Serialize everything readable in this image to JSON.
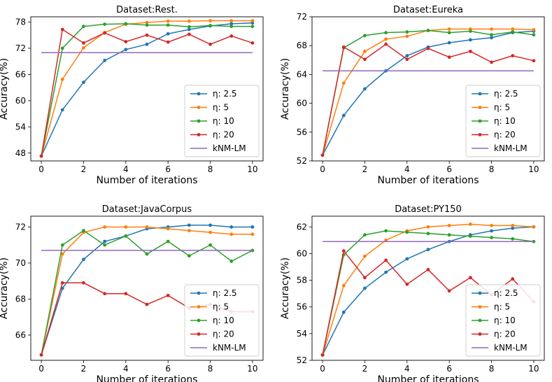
{
  "chart_data": [
    {
      "type": "line",
      "title": "Dataset:Rest.",
      "xlabel": "Number of iterations",
      "ylabel": "Accuracy(%)",
      "xlim": [
        -0.5,
        10.5
      ],
      "ylim": [
        46.2,
        79.2
      ],
      "xticks": [
        0,
        2,
        4,
        6,
        8,
        10
      ],
      "yticks": [
        48,
        54,
        60,
        66,
        72,
        78
      ],
      "legend_position": "lower-right",
      "x": [
        0,
        1,
        2,
        3,
        4,
        5,
        6,
        7,
        8,
        9,
        10
      ],
      "series": [
        {
          "name": "η: 2.5",
          "color": "#1f77b4",
          "values": [
            47.3,
            57.9,
            64.2,
            69.2,
            71.7,
            72.9,
            75.3,
            76.3,
            77.1,
            77.6,
            77.8
          ]
        },
        {
          "name": "η: 5",
          "color": "#ff7f0e",
          "values": [
            47.3,
            64.9,
            72.1,
            75.6,
            77.5,
            77.9,
            78.2,
            78.2,
            78.3,
            78.3,
            78.3
          ]
        },
        {
          "name": "η: 10",
          "color": "#2ca02c",
          "values": [
            47.3,
            72.0,
            77.0,
            77.5,
            77.6,
            77.3,
            77.3,
            76.9,
            77.2,
            77.0,
            77.0
          ]
        },
        {
          "name": "η: 20",
          "color": "#d62728",
          "values": [
            47.3,
            76.3,
            73.2,
            75.5,
            73.5,
            75.0,
            73.4,
            75.2,
            72.9,
            74.8,
            73.2
          ]
        },
        {
          "name": "kNM-LM",
          "color": "#9467bd",
          "values": [
            71.0,
            71.0,
            71.0,
            71.0,
            71.0,
            71.0,
            71.0,
            71.0,
            71.0,
            71.0,
            71.0
          ],
          "markers": false
        }
      ]
    },
    {
      "type": "line",
      "title": "Dataset:Eureka",
      "xlabel": "Number of iterations",
      "ylabel": "Accuracy(%)",
      "xlim": [
        -0.5,
        10.5
      ],
      "ylim": [
        52,
        72
      ],
      "xticks": [
        0,
        2,
        4,
        6,
        8,
        10
      ],
      "yticks": [
        52,
        56,
        60,
        64,
        68,
        72
      ],
      "legend_position": "lower-right",
      "x": [
        0,
        1,
        2,
        3,
        4,
        5,
        6,
        7,
        8,
        9,
        10
      ],
      "series": [
        {
          "name": "η: 2.5",
          "color": "#1f77b4",
          "values": [
            52.8,
            58.3,
            62.0,
            64.5,
            66.6,
            67.8,
            68.4,
            68.8,
            69.1,
            69.8,
            70.0
          ]
        },
        {
          "name": "η: 5",
          "color": "#ff7f0e",
          "values": [
            52.8,
            62.8,
            67.2,
            68.9,
            69.3,
            70.1,
            70.3,
            70.3,
            70.3,
            70.3,
            70.2
          ]
        },
        {
          "name": "η: 10",
          "color": "#2ca02c",
          "values": [
            52.8,
            67.7,
            69.4,
            69.8,
            69.9,
            70.1,
            69.8,
            70.0,
            69.5,
            69.9,
            69.5
          ]
        },
        {
          "name": "η: 20",
          "color": "#d62728",
          "values": [
            52.8,
            67.8,
            66.1,
            68.2,
            66.1,
            67.6,
            66.4,
            67.2,
            65.7,
            66.6,
            65.9
          ]
        },
        {
          "name": "kNM-LM",
          "color": "#9467bd",
          "values": [
            64.5,
            64.5,
            64.5,
            64.5,
            64.5,
            64.5,
            64.5,
            64.5,
            64.5,
            64.5,
            64.5
          ],
          "markers": false
        }
      ]
    },
    {
      "type": "line",
      "title": "Dataset:JavaCorpus",
      "xlabel": "Number of iterations",
      "ylabel": "Accuracy(%)",
      "xlim": [
        -0.5,
        10.5
      ],
      "ylim": [
        64.6,
        72.6
      ],
      "xticks": [
        0,
        2,
        4,
        6,
        8,
        10
      ],
      "yticks": [
        66,
        68,
        70,
        72
      ],
      "legend_position": "lower-right",
      "x": [
        0,
        1,
        2,
        3,
        4,
        5,
        6,
        7,
        8,
        9,
        10
      ],
      "series": [
        {
          "name": "η: 2.5",
          "color": "#1f77b4",
          "values": [
            64.9,
            68.6,
            70.2,
            71.2,
            71.5,
            71.9,
            72.0,
            72.1,
            72.1,
            72.0,
            72.0
          ]
        },
        {
          "name": "η: 5",
          "color": "#ff7f0e",
          "values": [
            64.9,
            70.5,
            71.7,
            72.0,
            72.0,
            72.0,
            71.9,
            71.8,
            71.7,
            71.6,
            71.6
          ]
        },
        {
          "name": "η: 10",
          "color": "#2ca02c",
          "values": [
            64.9,
            71.0,
            71.8,
            71.0,
            71.5,
            70.5,
            71.2,
            70.4,
            71.0,
            70.1,
            70.7
          ]
        },
        {
          "name": "η: 20",
          "color": "#d62728",
          "values": [
            64.9,
            68.9,
            68.9,
            68.3,
            68.3,
            67.7,
            68.2,
            67.5,
            67.7,
            67.3,
            67.3
          ]
        },
        {
          "name": "kNM-LM",
          "color": "#9467bd",
          "values": [
            70.7,
            70.7,
            70.7,
            70.7,
            70.7,
            70.7,
            70.7,
            70.7,
            70.7,
            70.7,
            70.7
          ],
          "markers": false
        }
      ]
    },
    {
      "type": "line",
      "title": "Dataset:PY150",
      "xlabel": "Number of iterations",
      "ylabel": "Accuracy(%)",
      "xlim": [
        -0.5,
        10.5
      ],
      "ylim": [
        52,
        62.8
      ],
      "xticks": [
        0,
        2,
        4,
        6,
        8,
        10
      ],
      "yticks": [
        52,
        54,
        56,
        58,
        60,
        62
      ],
      "legend_position": "lower-right",
      "x": [
        0,
        1,
        2,
        3,
        4,
        5,
        6,
        7,
        8,
        9,
        10
      ],
      "series": [
        {
          "name": "η: 2.5",
          "color": "#1f77b4",
          "values": [
            52.4,
            55.6,
            57.4,
            58.6,
            59.6,
            60.3,
            60.9,
            61.4,
            61.7,
            61.9,
            62.0
          ]
        },
        {
          "name": "η: 5",
          "color": "#ff7f0e",
          "values": [
            52.4,
            57.6,
            59.8,
            61.0,
            61.7,
            62.0,
            62.1,
            62.2,
            62.1,
            62.1,
            62.0
          ]
        },
        {
          "name": "η: 10",
          "color": "#2ca02c",
          "values": [
            52.4,
            59.9,
            61.4,
            61.7,
            61.6,
            61.5,
            61.4,
            61.3,
            61.2,
            61.1,
            60.9
          ]
        },
        {
          "name": "η: 20",
          "color": "#d62728",
          "values": [
            52.4,
            60.2,
            58.2,
            59.5,
            57.7,
            58.8,
            57.2,
            58.2,
            56.9,
            58.1,
            56.4
          ]
        },
        {
          "name": "kNM-LM",
          "color": "#9467bd",
          "values": [
            60.9,
            60.9,
            60.9,
            60.9,
            60.9,
            60.9,
            60.9,
            60.9,
            60.9,
            60.9,
            60.9
          ],
          "markers": false
        }
      ]
    }
  ]
}
